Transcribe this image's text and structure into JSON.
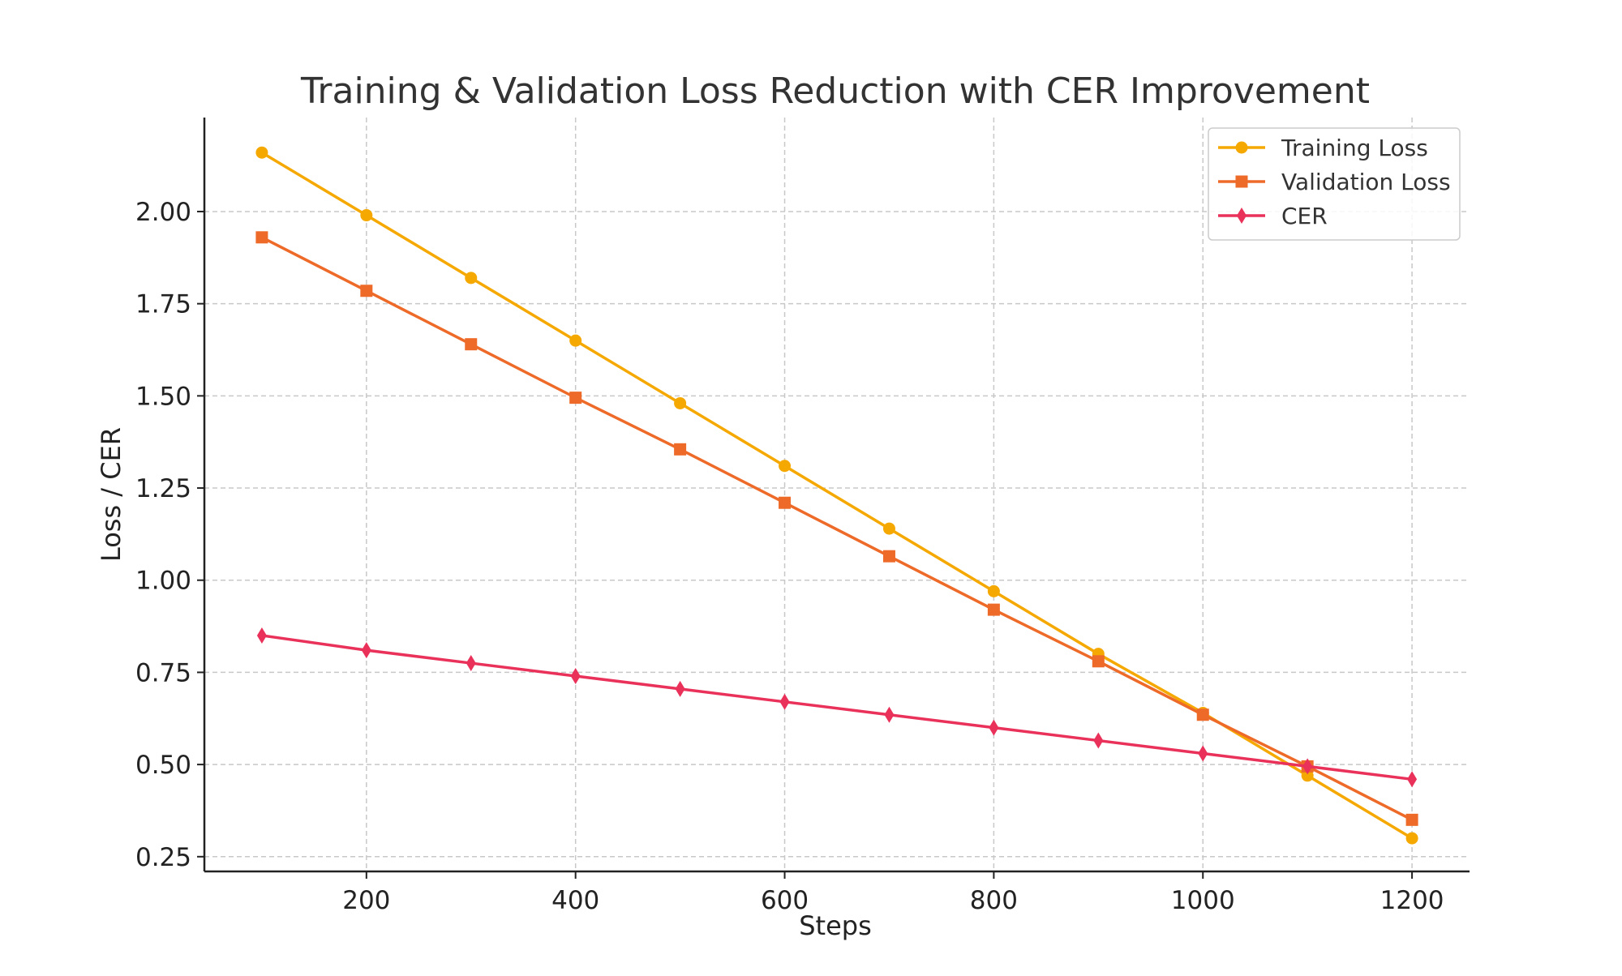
{
  "chart_data": {
    "type": "line",
    "title": "Training & Validation Loss Reduction with CER Improvement",
    "xlabel": "Steps",
    "ylabel": "Loss / CER",
    "x": [
      100,
      200,
      300,
      400,
      500,
      600,
      700,
      800,
      900,
      1000,
      1100,
      1200
    ],
    "xlim": [
      45,
      1255
    ],
    "ylim": [
      0.21,
      2.255
    ],
    "xticks": [
      200,
      400,
      600,
      800,
      1000,
      1200
    ],
    "xtick_labels": [
      "200",
      "400",
      "600",
      "800",
      "1000",
      "1200"
    ],
    "yticks": [
      0.25,
      0.5,
      0.75,
      1.0,
      1.25,
      1.5,
      1.75,
      2.0
    ],
    "ytick_labels": [
      "0.25",
      "0.50",
      "0.75",
      "1.00",
      "1.25",
      "1.50",
      "1.75",
      "2.00"
    ],
    "grid": true,
    "legend_position": "top-right",
    "series": [
      {
        "name": "Training Loss",
        "color": "#F5A800",
        "marker": "circle",
        "values": [
          2.16,
          1.99,
          1.82,
          1.65,
          1.48,
          1.31,
          1.14,
          0.97,
          0.8,
          0.64,
          0.47,
          0.3
        ]
      },
      {
        "name": "Validation Loss",
        "color": "#EE6A28",
        "marker": "square",
        "values": [
          1.93,
          1.785,
          1.64,
          1.495,
          1.355,
          1.21,
          1.065,
          0.92,
          0.78,
          0.635,
          0.495,
          0.35
        ]
      },
      {
        "name": "CER",
        "color": "#E9315A",
        "marker": "diamond",
        "values": [
          0.85,
          0.81,
          0.775,
          0.74,
          0.705,
          0.67,
          0.635,
          0.6,
          0.565,
          0.53,
          0.495,
          0.46
        ]
      }
    ]
  }
}
